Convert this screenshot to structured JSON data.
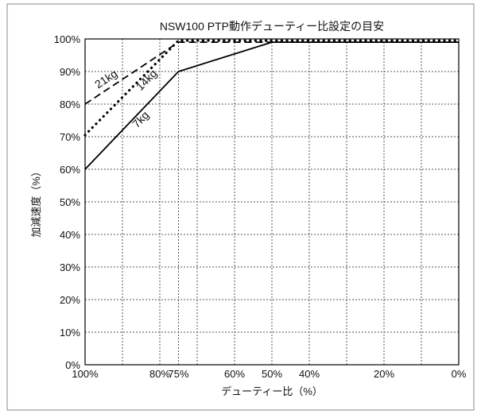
{
  "chart_data": {
    "type": "line",
    "title": "NSW100 PTP動作デューティー比設定の目安",
    "xlabel": "デューティー比（%）",
    "ylabel": "加減速度（%）",
    "x_reversed": true,
    "xlim": [
      100,
      0
    ],
    "ylim": [
      0,
      100
    ],
    "x_gridlines": [
      100,
      90,
      80,
      75,
      70,
      60,
      50,
      40,
      30,
      20,
      10,
      0
    ],
    "y_gridlines": [
      0,
      10,
      20,
      30,
      40,
      50,
      60,
      70,
      80,
      90,
      100
    ],
    "x_tick_labels": [
      {
        "value": 100,
        "label": "100%"
      },
      {
        "value": 80,
        "label": "80%"
      },
      {
        "value": 75,
        "label": "75%"
      },
      {
        "value": 60,
        "label": "60%"
      },
      {
        "value": 50,
        "label": "50%"
      },
      {
        "value": 40,
        "label": "40%"
      },
      {
        "value": 20,
        "label": "20%"
      },
      {
        "value": 0,
        "label": "0%"
      }
    ],
    "y_tick_labels": [
      {
        "value": 100,
        "label": "100%"
      },
      {
        "value": 90,
        "label": "90%"
      },
      {
        "value": 80,
        "label": "80%"
      },
      {
        "value": 70,
        "label": "70%"
      },
      {
        "value": 60,
        "label": "60%"
      },
      {
        "value": 50,
        "label": "50%"
      },
      {
        "value": 40,
        "label": "40%"
      },
      {
        "value": 30,
        "label": "30%"
      },
      {
        "value": 20,
        "label": "20%"
      },
      {
        "value": 10,
        "label": "10%"
      },
      {
        "value": 0,
        "label": "0%"
      }
    ],
    "grid": true,
    "series": [
      {
        "name": "21kg",
        "style": "dashed",
        "color": "#000000",
        "x": [
          100,
          75,
          0
        ],
        "y": [
          80,
          99,
          99
        ]
      },
      {
        "name": "14kg",
        "style": "dotted",
        "color": "#000000",
        "x": [
          100,
          75,
          0
        ],
        "y": [
          70.5,
          99.5,
          99.5
        ]
      },
      {
        "name": "7kg",
        "style": "solid",
        "color": "#000000",
        "x": [
          100,
          75,
          50,
          0
        ],
        "y": [
          60,
          90,
          99,
          99
        ]
      }
    ],
    "annotations": [
      {
        "series": "21kg",
        "text": "21kg"
      },
      {
        "series": "14kg",
        "text": "14kg"
      },
      {
        "series": "7kg",
        "text": "7kg"
      }
    ]
  }
}
